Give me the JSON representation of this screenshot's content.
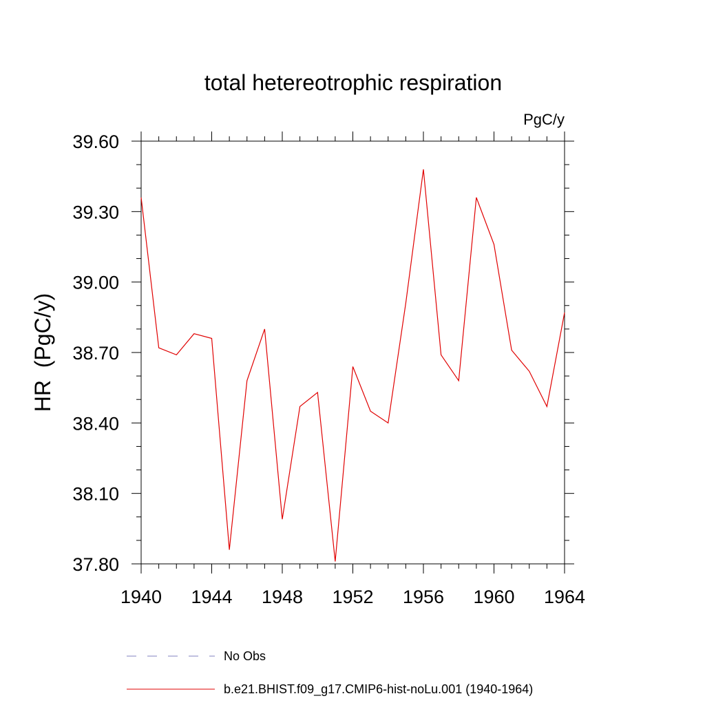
{
  "chart_data": {
    "type": "line",
    "title": "total hetereotrophic respiration",
    "units_label": "PgC/y",
    "ylabel": "HR  (PgC/y)",
    "xlabel": "",
    "xlim": [
      1940,
      1964
    ],
    "ylim": [
      37.8,
      39.6
    ],
    "xticks": [
      1940,
      1944,
      1948,
      1952,
      1956,
      1960,
      1964
    ],
    "xtick_labels": [
      "1940",
      "1944",
      "1948",
      "1952",
      "1956",
      "1960",
      "1964"
    ],
    "yticks": [
      37.8,
      38.1,
      38.4,
      38.7,
      39.0,
      39.3,
      39.6
    ],
    "ytick_labels": [
      "37.80",
      "38.10",
      "38.40",
      "38.70",
      "39.00",
      "39.30",
      "39.60"
    ],
    "grid": false,
    "legend_position": "bottom",
    "series": [
      {
        "name": "No Obs",
        "color": "#8080c0",
        "style": "dashed",
        "x": [],
        "y": []
      },
      {
        "name": "b.e21.BHIST.f09_g17.CMIP6-hist-noLu.001 (1940-1964)",
        "color": "#e00000",
        "style": "solid",
        "x": [
          1940,
          1941,
          1942,
          1943,
          1944,
          1945,
          1946,
          1947,
          1948,
          1949,
          1950,
          1951,
          1952,
          1953,
          1954,
          1955,
          1956,
          1957,
          1958,
          1959,
          1960,
          1961,
          1962,
          1963,
          1964
        ],
        "y": [
          39.36,
          38.72,
          38.69,
          38.78,
          38.76,
          37.86,
          38.58,
          38.8,
          37.99,
          38.47,
          38.53,
          37.81,
          38.64,
          38.45,
          38.4,
          38.91,
          39.48,
          38.69,
          38.58,
          39.36,
          39.16,
          38.71,
          38.62,
          38.47,
          38.87
        ]
      }
    ]
  }
}
